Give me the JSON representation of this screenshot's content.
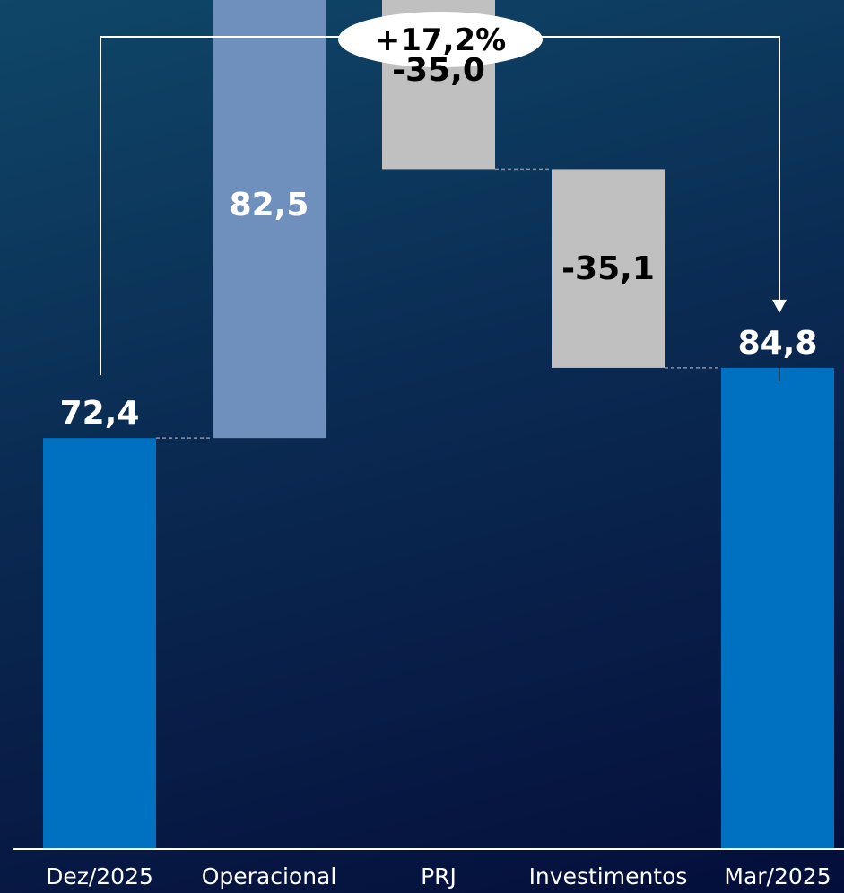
{
  "chart_data": {
    "type": "waterfall",
    "categories": [
      "Dez/2025",
      "Operacional",
      "PRJ",
      "Investimentos",
      "Mar/2025"
    ],
    "steps": [
      {
        "category": "Dez/2025",
        "kind": "total",
        "value": 72.4,
        "label": "72,4"
      },
      {
        "category": "Operacional",
        "kind": "delta",
        "value": 82.5,
        "label": "82,5"
      },
      {
        "category": "PRJ",
        "kind": "delta",
        "value": -35.0,
        "label": "-35,0"
      },
      {
        "category": "Investimentos",
        "kind": "delta",
        "value": -35.1,
        "label": "-35,1"
      },
      {
        "category": "Mar/2025",
        "kind": "total",
        "value": 84.8,
        "label": "84,8"
      }
    ],
    "change_annotation": {
      "text": "+17,2%",
      "from": "Dez/2025",
      "to": "Mar/2025"
    },
    "ylim": [
      0,
      155
    ],
    "grid": false,
    "colors": {
      "total": "#0070c0",
      "increase": "#6f8fbc",
      "decrease": "#c0c0c0",
      "label_light": "#ffffff",
      "label_dark": "#000000",
      "connector": "#8a8fa0",
      "axis": "#ffffff"
    }
  }
}
